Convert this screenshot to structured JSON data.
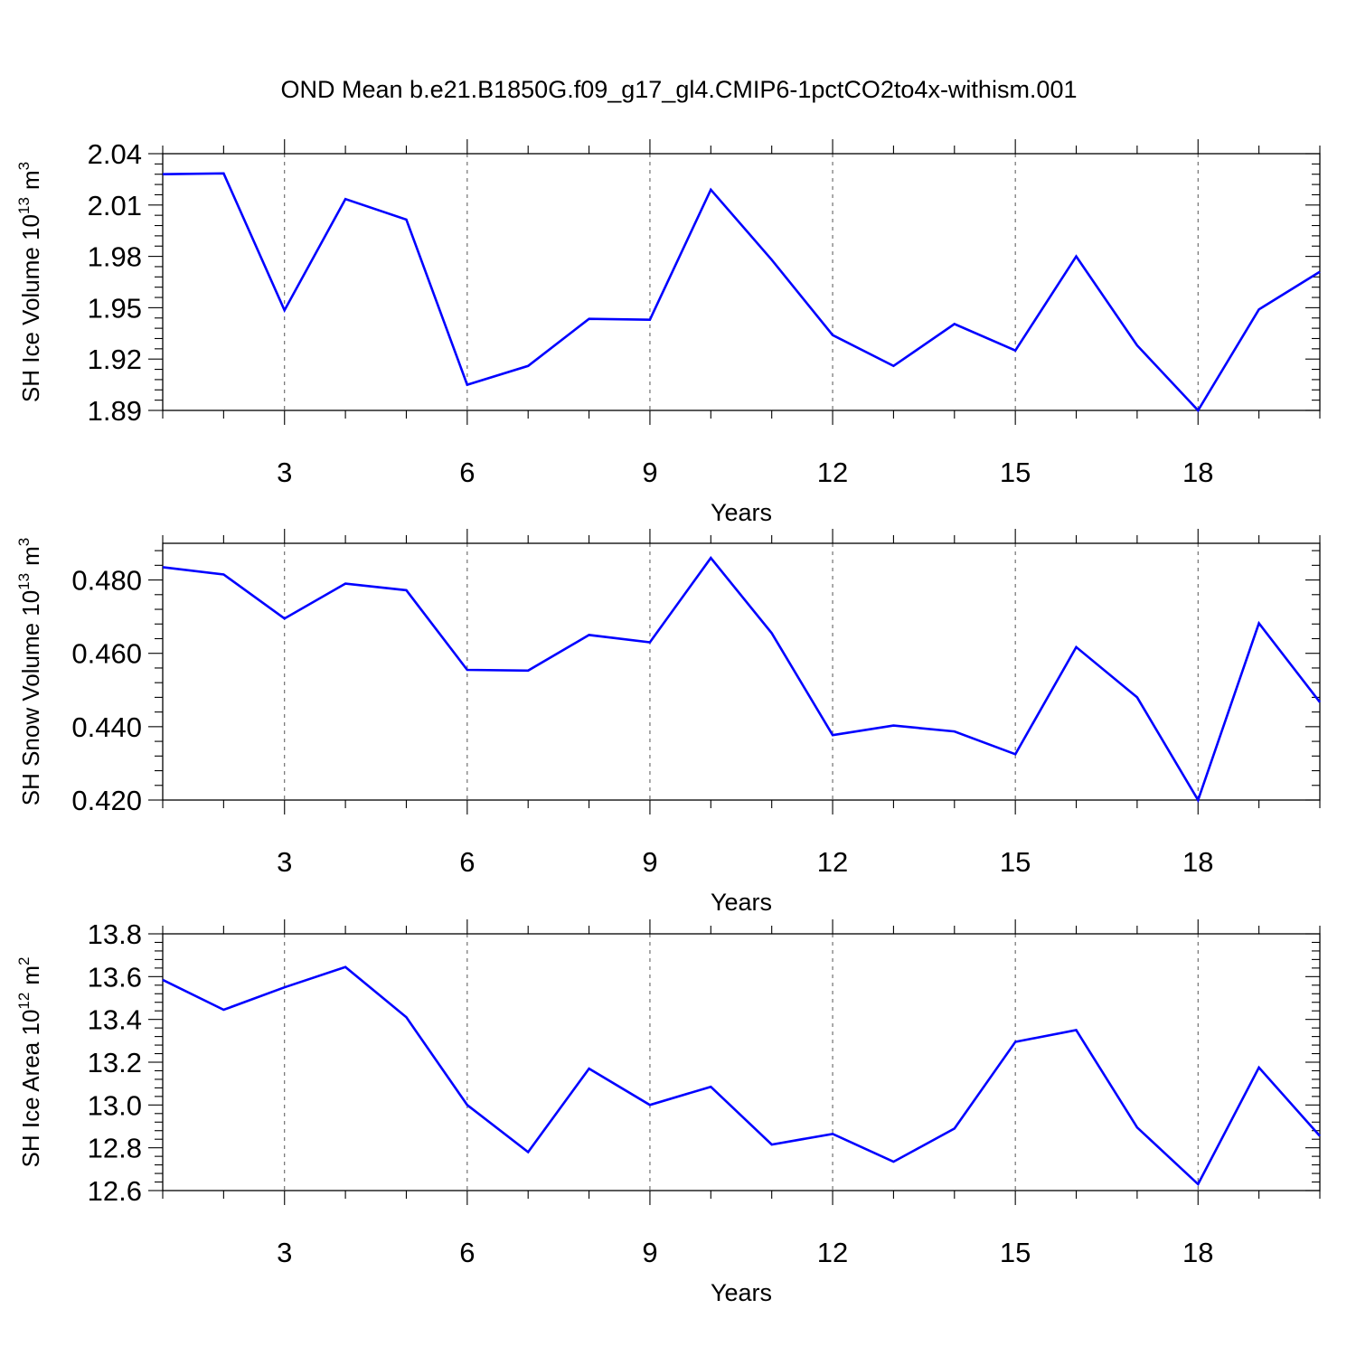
{
  "title": "OND Mean b.e21.B1850G.f09_g17_gl4.CMIP6-1pctCO2to4x-withism.001",
  "chart_data": [
    {
      "type": "line",
      "title": "",
      "ylabel": "SH Ice Volume 10",
      "ylabel_sup": "13",
      "ylabel_unit": "m",
      "ylabel_unit_sup": "3",
      "xlabel": "Years",
      "xlim": [
        1,
        20
      ],
      "ylim": [
        1.89,
        2.04
      ],
      "yticks": [
        1.89,
        1.92,
        1.95,
        1.98,
        2.01,
        2.04
      ],
      "ytick_labels": [
        "1.89",
        "1.92",
        "1.95",
        "1.98",
        "2.01",
        "2.04"
      ],
      "xticks": [
        3,
        6,
        9,
        12,
        15,
        18
      ],
      "xtick_labels": [
        "3",
        "6",
        "9",
        "12",
        "15",
        "18"
      ],
      "grid": "vertical-dashed",
      "color": "#0000ff",
      "x": [
        1,
        2,
        3,
        4,
        5,
        6,
        7,
        8,
        9,
        10,
        11,
        12,
        13,
        14,
        15,
        16,
        17,
        18,
        19,
        20
      ],
      "values": [
        2.028,
        2.0285,
        1.9485,
        2.0135,
        2.0015,
        1.905,
        1.916,
        1.9435,
        1.943,
        2.019,
        1.978,
        1.934,
        1.916,
        1.9405,
        1.925,
        1.98,
        1.928,
        1.89,
        1.949,
        1.971
      ]
    },
    {
      "type": "line",
      "title": "",
      "ylabel": "SH Snow Volume 10",
      "ylabel_sup": "13",
      "ylabel_unit": "m",
      "ylabel_unit_sup": "3",
      "xlabel": "Years",
      "xlim": [
        1,
        20
      ],
      "ylim": [
        0.42,
        0.49
      ],
      "yticks": [
        0.42,
        0.44,
        0.46,
        0.48
      ],
      "ytick_labels": [
        "0.420",
        "0.440",
        "0.460",
        "0.480"
      ],
      "xticks": [
        3,
        6,
        9,
        12,
        15,
        18
      ],
      "xtick_labels": [
        "3",
        "6",
        "9",
        "12",
        "15",
        "18"
      ],
      "grid": "vertical-dashed",
      "color": "#0000ff",
      "x": [
        1,
        2,
        3,
        4,
        5,
        6,
        7,
        8,
        9,
        10,
        11,
        12,
        13,
        14,
        15,
        16,
        17,
        18,
        19,
        20
      ],
      "values": [
        0.4835,
        0.4815,
        0.4695,
        0.479,
        0.4772,
        0.4555,
        0.4553,
        0.465,
        0.463,
        0.486,
        0.4655,
        0.4377,
        0.4403,
        0.4387,
        0.4325,
        0.4617,
        0.448,
        0.42,
        0.4682,
        0.4467
      ]
    },
    {
      "type": "line",
      "title": "",
      "ylabel": "SH Ice Area 10",
      "ylabel_sup": "12",
      "ylabel_unit": "m",
      "ylabel_unit_sup": "2",
      "xlabel": "Years",
      "xlim": [
        1,
        20
      ],
      "ylim": [
        12.6,
        13.8
      ],
      "yticks": [
        12.6,
        12.8,
        13.0,
        13.2,
        13.4,
        13.6,
        13.8
      ],
      "ytick_labels": [
        "12.6",
        "12.8",
        "13.0",
        "13.2",
        "13.4",
        "13.6",
        "13.8"
      ],
      "xticks": [
        3,
        6,
        9,
        12,
        15,
        18
      ],
      "xtick_labels": [
        "3",
        "6",
        "9",
        "12",
        "15",
        "18"
      ],
      "grid": "vertical-dashed",
      "color": "#0000ff",
      "x": [
        1,
        2,
        3,
        4,
        5,
        6,
        7,
        8,
        9,
        10,
        11,
        12,
        13,
        14,
        15,
        16,
        17,
        18,
        19,
        20
      ],
      "values": [
        13.585,
        13.445,
        13.55,
        13.645,
        13.41,
        13.0,
        12.78,
        13.17,
        13.0,
        13.085,
        12.815,
        12.865,
        12.735,
        12.89,
        13.295,
        13.35,
        12.895,
        12.63,
        13.175,
        12.855
      ]
    }
  ]
}
